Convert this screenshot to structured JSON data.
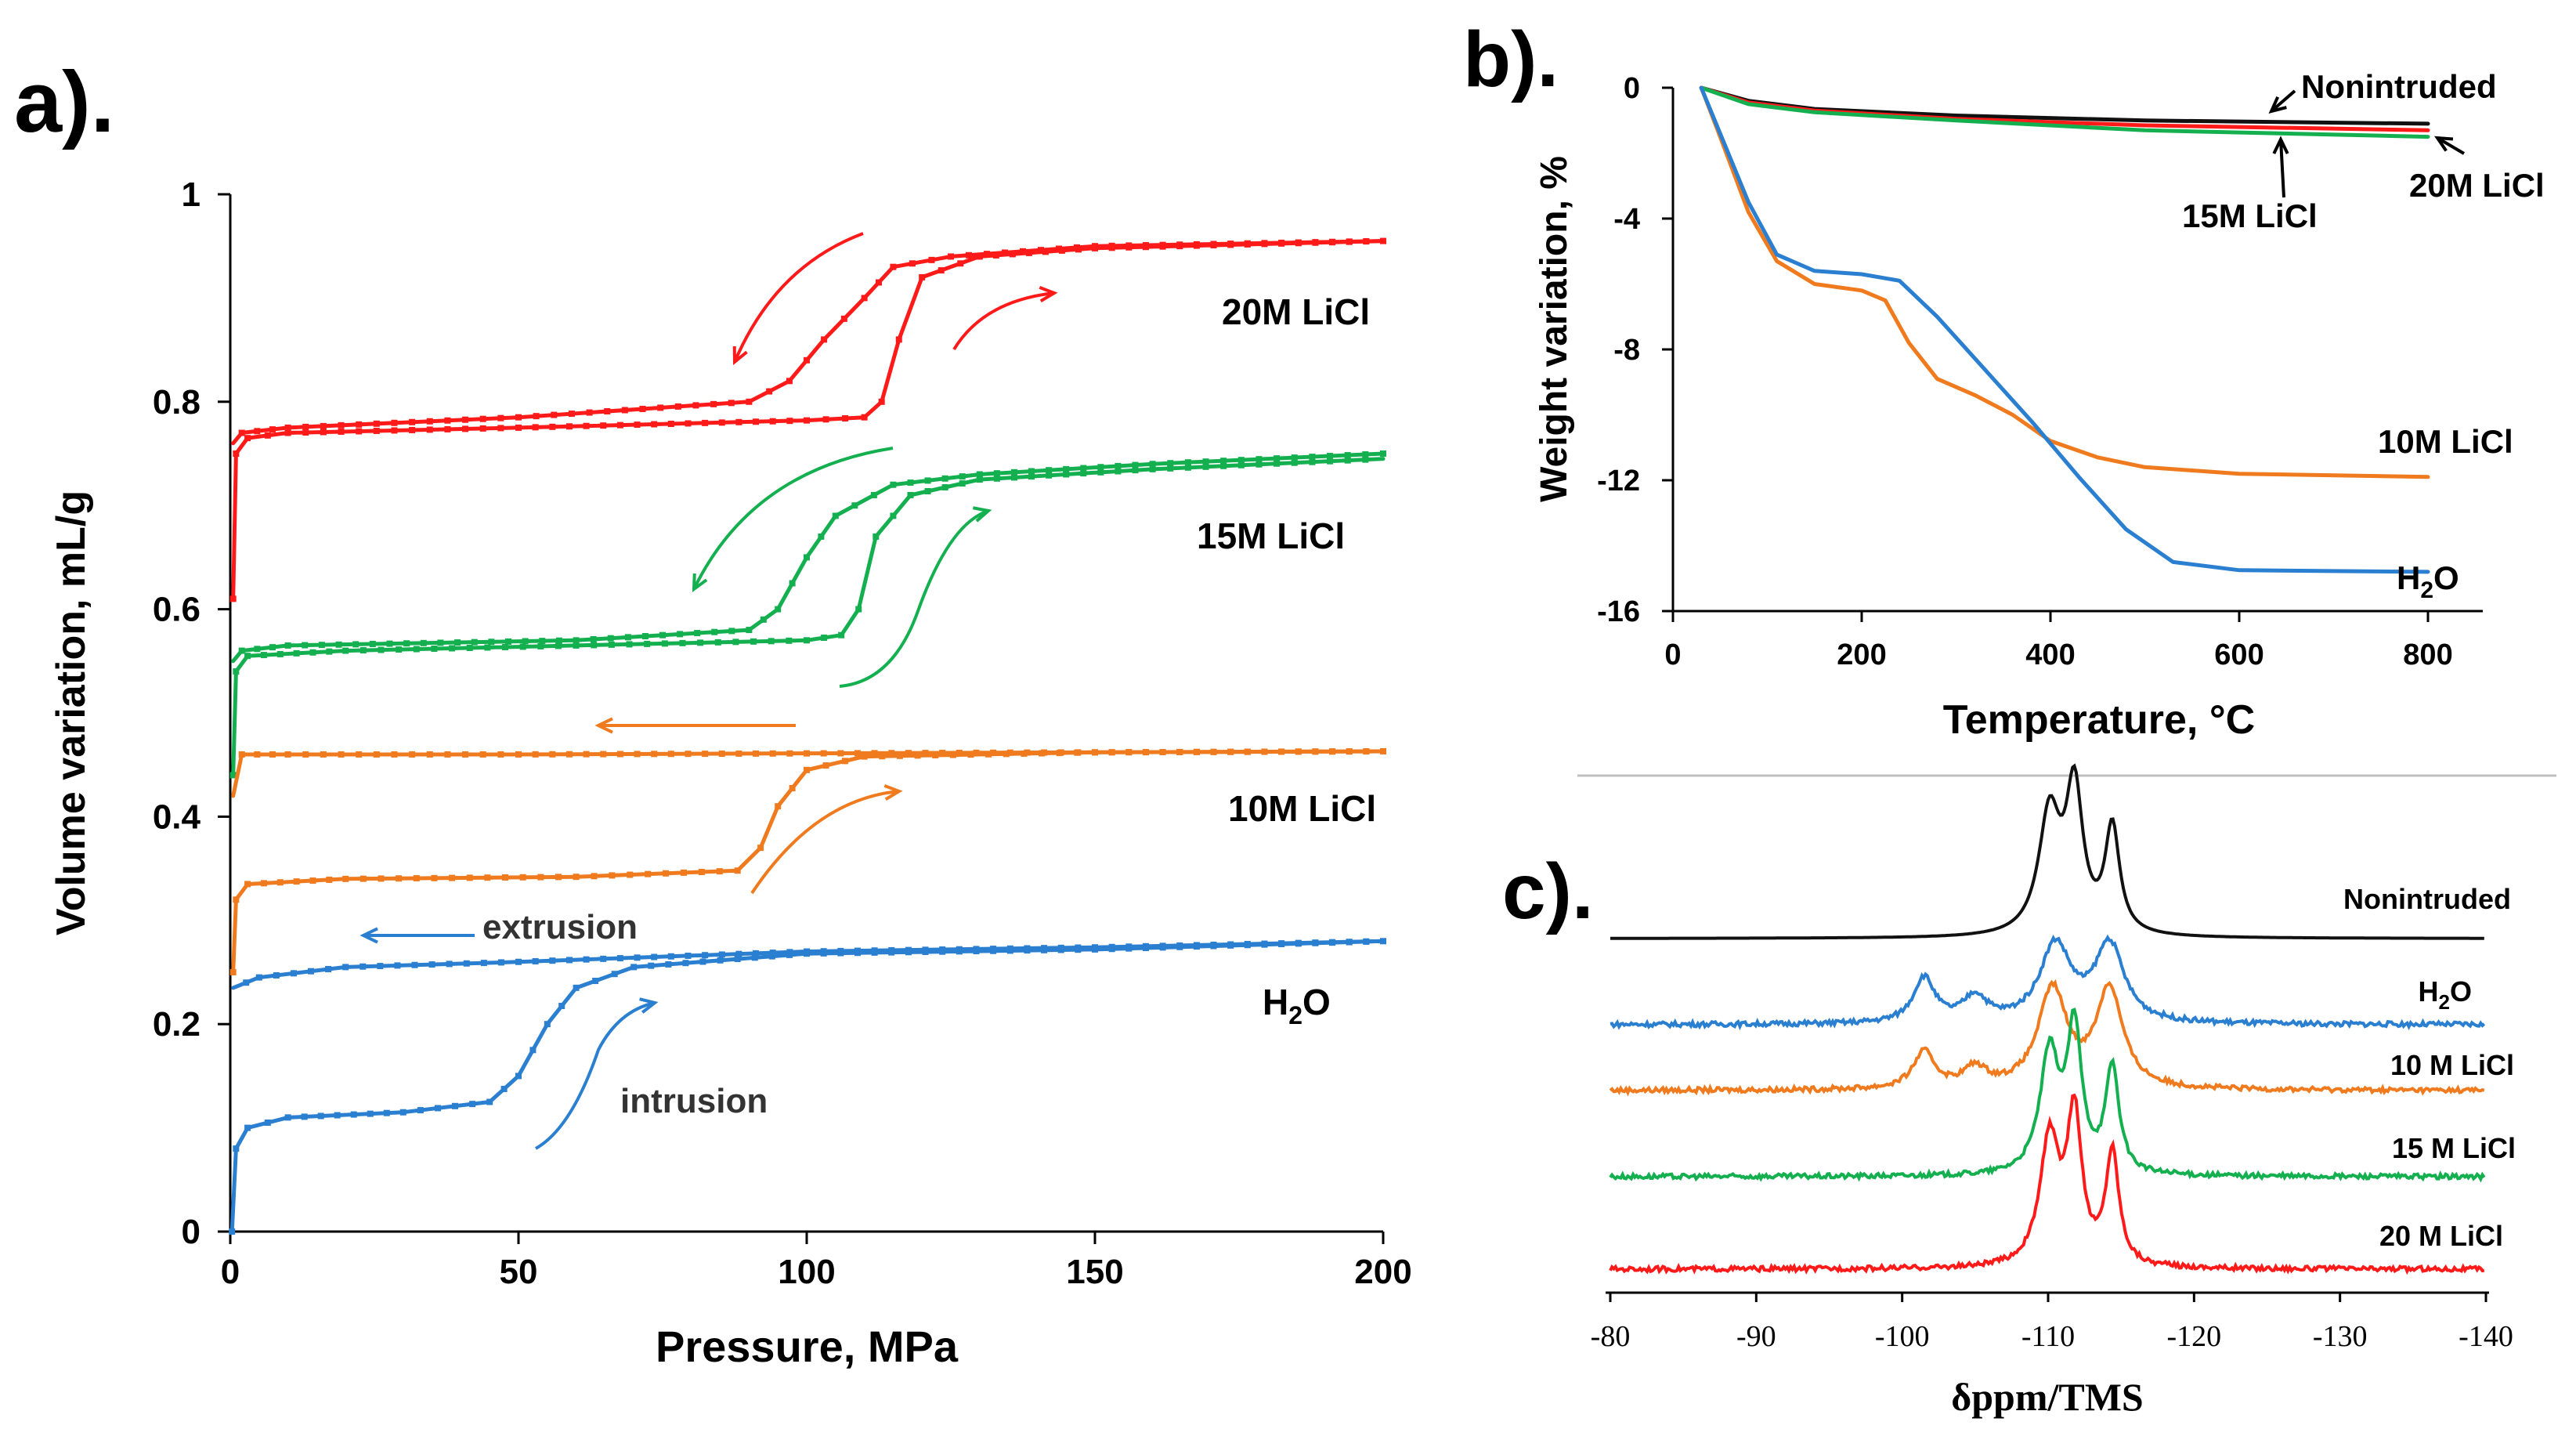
{
  "colors": {
    "red": "#ff1a1a",
    "green": "#14b050",
    "orange": "#f07a1e",
    "blue": "#2a7fd0",
    "black": "#111111"
  },
  "chart_data": [
    {
      "panel_label": "a).",
      "type": "line",
      "xlabel": "Pressure, MPa",
      "ylabel": "Volume variation, mL/g",
      "xlim": [
        0,
        200
      ],
      "ylim": [
        0,
        1
      ],
      "xticks": [
        "0",
        "50",
        "100",
        "150",
        "200"
      ],
      "yticks": [
        "0",
        "0.2",
        "0.4",
        "0.6",
        "0.8",
        "1"
      ],
      "annotations": {
        "extrusion": "extrusion",
        "intrusion": "intrusion"
      },
      "series": [
        {
          "name": "20M LiCl",
          "color_key": "red",
          "intrusion": [
            [
              0.5,
              0.61
            ],
            [
              1,
              0.75
            ],
            [
              3,
              0.765
            ],
            [
              10,
              0.77
            ],
            [
              50,
              0.775
            ],
            [
              100,
              0.782
            ],
            [
              110,
              0.785
            ],
            [
              113,
              0.8
            ],
            [
              116,
              0.86
            ],
            [
              120,
              0.92
            ],
            [
              130,
              0.94
            ],
            [
              150,
              0.948
            ],
            [
              200,
              0.955
            ]
          ],
          "extrusion": [
            [
              200,
              0.955
            ],
            [
              150,
              0.95
            ],
            [
              125,
              0.94
            ],
            [
              115,
              0.93
            ],
            [
              110,
              0.9
            ],
            [
              103,
              0.86
            ],
            [
              97,
              0.82
            ],
            [
              90,
              0.8
            ],
            [
              50,
              0.785
            ],
            [
              10,
              0.775
            ],
            [
              2,
              0.77
            ],
            [
              0.5,
              0.76
            ]
          ]
        },
        {
          "name": "15M LiCl",
          "color_key": "green",
          "intrusion": [
            [
              0.5,
              0.44
            ],
            [
              1,
              0.54
            ],
            [
              3,
              0.555
            ],
            [
              20,
              0.56
            ],
            [
              60,
              0.565
            ],
            [
              100,
              0.57
            ],
            [
              106,
              0.575
            ],
            [
              109,
              0.6
            ],
            [
              112,
              0.67
            ],
            [
              118,
              0.71
            ],
            [
              130,
              0.725
            ],
            [
              160,
              0.735
            ],
            [
              200,
              0.745
            ]
          ],
          "extrusion": [
            [
              200,
              0.75
            ],
            [
              160,
              0.74
            ],
            [
              130,
              0.73
            ],
            [
              115,
              0.72
            ],
            [
              105,
              0.69
            ],
            [
              100,
              0.65
            ],
            [
              95,
              0.6
            ],
            [
              90,
              0.58
            ],
            [
              60,
              0.57
            ],
            [
              10,
              0.565
            ],
            [
              2,
              0.56
            ],
            [
              0.5,
              0.55
            ]
          ]
        },
        {
          "name": "10M LiCl",
          "color_key": "orange",
          "intrusion": [
            [
              0.5,
              0.25
            ],
            [
              1,
              0.32
            ],
            [
              3,
              0.335
            ],
            [
              20,
              0.34
            ],
            [
              60,
              0.342
            ],
            [
              88,
              0.348
            ],
            [
              92,
              0.37
            ],
            [
              95,
              0.41
            ],
            [
              100,
              0.445
            ],
            [
              110,
              0.458
            ],
            [
              150,
              0.462
            ],
            [
              200,
              0.463
            ]
          ],
          "extrusion": [
            [
              200,
              0.463
            ],
            [
              150,
              0.462
            ],
            [
              100,
              0.461
            ],
            [
              50,
              0.46
            ],
            [
              10,
              0.46
            ],
            [
              2,
              0.46
            ],
            [
              0.5,
              0.42
            ]
          ]
        },
        {
          "name": "H2O",
          "color_key": "blue",
          "intrusion": [
            [
              0.3,
              0.0
            ],
            [
              1,
              0.08
            ],
            [
              3,
              0.1
            ],
            [
              10,
              0.11
            ],
            [
              30,
              0.115
            ],
            [
              45,
              0.125
            ],
            [
              50,
              0.15
            ],
            [
              55,
              0.2
            ],
            [
              60,
              0.235
            ],
            [
              70,
              0.255
            ],
            [
              100,
              0.268
            ],
            [
              150,
              0.272
            ],
            [
              200,
              0.28
            ]
          ],
          "extrusion": [
            [
              200,
              0.28
            ],
            [
              150,
              0.274
            ],
            [
              100,
              0.27
            ],
            [
              50,
              0.26
            ],
            [
              20,
              0.255
            ],
            [
              5,
              0.245
            ],
            [
              0.5,
              0.235
            ]
          ]
        }
      ]
    },
    {
      "panel_label": "b).",
      "type": "line",
      "xlabel": "Temperature, °C",
      "ylabel": "Weight variation, %",
      "xlim": [
        0,
        800
      ],
      "ylim": [
        -16,
        0
      ],
      "xticks": [
        "0",
        "200",
        "400",
        "600",
        "800"
      ],
      "yticks": [
        "0",
        "-4",
        "-8",
        "-12",
        "-16"
      ],
      "series": [
        {
          "name": "Nonintruded",
          "color_key": "black",
          "points": [
            [
              30,
              0
            ],
            [
              80,
              -0.4
            ],
            [
              150,
              -0.65
            ],
            [
              300,
              -0.85
            ],
            [
              500,
              -1.0
            ],
            [
              800,
              -1.1
            ]
          ]
        },
        {
          "name": "20M LiCl",
          "color_key": "red",
          "points": [
            [
              30,
              0
            ],
            [
              80,
              -0.45
            ],
            [
              150,
              -0.7
            ],
            [
              300,
              -0.95
            ],
            [
              500,
              -1.15
            ],
            [
              800,
              -1.3
            ]
          ]
        },
        {
          "name": "15M LiCl",
          "color_key": "green",
          "points": [
            [
              30,
              0
            ],
            [
              80,
              -0.5
            ],
            [
              150,
              -0.75
            ],
            [
              300,
              -1.0
            ],
            [
              500,
              -1.3
            ],
            [
              800,
              -1.5
            ]
          ]
        },
        {
          "name": "10M LiCl",
          "color_key": "orange",
          "points": [
            [
              30,
              0
            ],
            [
              50,
              -1.5
            ],
            [
              80,
              -3.8
            ],
            [
              110,
              -5.3
            ],
            [
              150,
              -6.0
            ],
            [
              200,
              -6.2
            ],
            [
              225,
              -6.5
            ],
            [
              250,
              -7.8
            ],
            [
              280,
              -8.9
            ],
            [
              320,
              -9.4
            ],
            [
              360,
              -10.0
            ],
            [
              400,
              -10.8
            ],
            [
              450,
              -11.3
            ],
            [
              500,
              -11.6
            ],
            [
              600,
              -11.8
            ],
            [
              800,
              -11.9
            ]
          ]
        },
        {
          "name": "H2O",
          "color_key": "blue",
          "points": [
            [
              30,
              0
            ],
            [
              50,
              -1.4
            ],
            [
              80,
              -3.5
            ],
            [
              110,
              -5.1
            ],
            [
              150,
              -5.6
            ],
            [
              200,
              -5.7
            ],
            [
              240,
              -5.9
            ],
            [
              280,
              -7.0
            ],
            [
              330,
              -8.6
            ],
            [
              380,
              -10.2
            ],
            [
              430,
              -11.9
            ],
            [
              480,
              -13.5
            ],
            [
              530,
              -14.5
            ],
            [
              600,
              -14.75
            ],
            [
              800,
              -14.8
            ]
          ]
        }
      ]
    },
    {
      "panel_label": "c).",
      "type": "line",
      "xlabel": "δppm/TMS",
      "xlim": [
        -80,
        -140
      ],
      "xticks": [
        "-80",
        "-90",
        "-100",
        "-110",
        "-120",
        "-130",
        "-140"
      ],
      "series": [
        {
          "name": "Nonintruded",
          "color_key": "black",
          "peaks": [
            [
              -110.1,
              0.85,
              0.9
            ],
            [
              -111.8,
              1.0,
              0.7
            ],
            [
              -114.4,
              0.75,
              0.6
            ]
          ]
        },
        {
          "name": "H2O",
          "color_key": "blue",
          "peaks": [
            [
              -101.5,
              0.32,
              0.9
            ],
            [
              -105,
              0.18,
              1.0
            ],
            [
              -110.5,
              0.55,
              1.3
            ],
            [
              -114.2,
              0.55,
              1.2
            ]
          ]
        },
        {
          "name": "10 M LiCl",
          "color_key": "orange",
          "peaks": [
            [
              -101.5,
              0.26,
              0.9
            ],
            [
              -105,
              0.14,
              1.0
            ],
            [
              -110.3,
              0.7,
              1.2
            ],
            [
              -114.2,
              0.7,
              1.1
            ]
          ]
        },
        {
          "name": "15 M LiCl",
          "color_key": "green",
          "peaks": [
            [
              -110.1,
              0.85,
              0.8
            ],
            [
              -111.8,
              1.0,
              0.6
            ],
            [
              -114.4,
              0.75,
              0.55
            ]
          ]
        },
        {
          "name": "20 M LiCl",
          "color_key": "red",
          "peaks": [
            [
              -110.1,
              0.9,
              0.8
            ],
            [
              -111.8,
              1.05,
              0.6
            ],
            [
              -114.4,
              0.8,
              0.55
            ]
          ]
        }
      ]
    }
  ]
}
